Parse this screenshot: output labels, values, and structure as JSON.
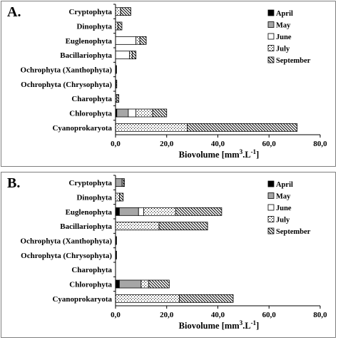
{
  "panels": [
    {
      "letter": "A."
    },
    {
      "letter": "B."
    }
  ],
  "legend_items": [
    {
      "label": "April",
      "pattern": "solid-black"
    },
    {
      "label": "May",
      "pattern": "solid-gray"
    },
    {
      "label": "June",
      "pattern": "white"
    },
    {
      "label": "July",
      "pattern": "checker"
    },
    {
      "label": "September",
      "pattern": "diagonal-stripes"
    }
  ],
  "colors": {
    "may_gray": "#a6a6a6",
    "border": "#7f7f7f",
    "axis": "#000000"
  },
  "chart_data": [
    {
      "type": "bar",
      "orientation": "horizontal",
      "stacked": true,
      "title": "A.",
      "xlabel": "Biovolume [mm3.L-1]",
      "xlim": [
        0,
        80
      ],
      "xticks": [
        "0,0",
        "20,0",
        "40,0",
        "60,0",
        "80,0"
      ],
      "legend_position": "right",
      "categories": [
        "Cryptophyta",
        "Dinophyta",
        "Euglenophyta",
        "Bacillariophyta",
        "Ochrophyta (Xanthophyta)",
        "Ochrophyta (Chrysophyta)",
        "Charophyta",
        "Chlorophyta",
        "Cyanoprokaryota"
      ],
      "series": [
        {
          "name": "April",
          "values": [
            0,
            0,
            0,
            0,
            0,
            0,
            0,
            0.5,
            0
          ]
        },
        {
          "name": "May",
          "values": [
            0,
            0,
            0,
            0,
            0,
            0,
            0,
            4.5,
            0
          ]
        },
        {
          "name": "June",
          "values": [
            0,
            0,
            8,
            5.5,
            0,
            0,
            0,
            3,
            0
          ]
        },
        {
          "name": "July",
          "values": [
            2,
            1,
            1.5,
            1,
            0.2,
            0.2,
            0.5,
            6.5,
            28
          ]
        },
        {
          "name": "September",
          "values": [
            4,
            1.5,
            2.5,
            1.5,
            0.2,
            0.3,
            0.8,
            5.5,
            43
          ]
        }
      ]
    },
    {
      "type": "bar",
      "orientation": "horizontal",
      "stacked": true,
      "title": "B.",
      "xlabel": "Biovolume [mm3.L-1]",
      "xlim": [
        0,
        80
      ],
      "xticks": [
        "0,0",
        "20,0",
        "40,0",
        "60,0",
        "80,0"
      ],
      "legend_position": "right",
      "categories": [
        "Cryptophyta",
        "Dinophyta",
        "Euglenophyta",
        "Bacillariophyta",
        "Ochrophyta (Xanthophyta)",
        "Ochrophyta (Chrysophyta)",
        "Charophyta",
        "Chlorophyta",
        "Cyanoprokaryota"
      ],
      "series": [
        {
          "name": "April",
          "values": [
            0,
            0,
            1.5,
            0,
            0,
            0,
            0,
            1.5,
            0
          ]
        },
        {
          "name": "May",
          "values": [
            2.5,
            0,
            7.5,
            0,
            0,
            0,
            0,
            8.5,
            0
          ]
        },
        {
          "name": "June",
          "values": [
            0,
            0,
            2,
            0,
            0,
            0,
            0,
            0,
            0
          ]
        },
        {
          "name": "July",
          "values": [
            0.5,
            1.5,
            12.5,
            17,
            0.2,
            0.2,
            0,
            3,
            25
          ]
        },
        {
          "name": "September",
          "values": [
            0.5,
            1.5,
            18,
            19,
            0.2,
            0.2,
            0,
            8,
            21
          ]
        }
      ]
    }
  ]
}
